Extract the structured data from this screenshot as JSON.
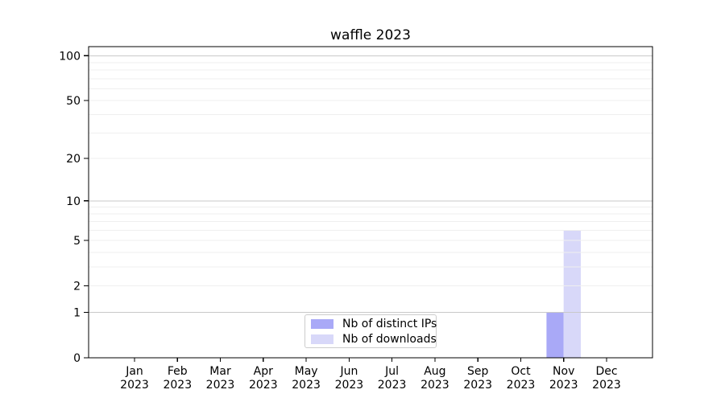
{
  "chart_data": {
    "type": "bar",
    "title": "waffle 2023",
    "categories": [
      "Jan",
      "Feb",
      "Mar",
      "Apr",
      "May",
      "Jun",
      "Jul",
      "Aug",
      "Sep",
      "Oct",
      "Nov",
      "Dec"
    ],
    "category_year": "2023",
    "series": [
      {
        "name": "Nb of distinct IPs",
        "color": "#a9a9f7",
        "values": [
          0,
          0,
          0,
          0,
          0,
          0,
          0,
          0,
          0,
          0,
          1,
          0
        ]
      },
      {
        "name": "Nb of downloads",
        "color": "#d8d8f9",
        "values": [
          0,
          0,
          0,
          0,
          0,
          0,
          0,
          0,
          0,
          0,
          6,
          0
        ]
      }
    ],
    "xlabel": "",
    "ylabel": "",
    "yscale": "log1p",
    "ylim": [
      0,
      115
    ],
    "yticks": [
      0,
      1,
      2,
      5,
      10,
      20,
      50,
      100
    ],
    "grid": {
      "major_lines": [
        1,
        10,
        100
      ],
      "minor_lines": [
        2,
        3,
        4,
        5,
        6,
        7,
        8,
        9,
        20,
        30,
        40,
        50,
        60,
        70,
        80,
        90
      ],
      "major_color": "#c9c9c9",
      "minor_color": "#efefef"
    },
    "legend_position": "lower center",
    "colors": {
      "axis": "#000000",
      "text": "#000000",
      "background": "#ffffff"
    }
  }
}
